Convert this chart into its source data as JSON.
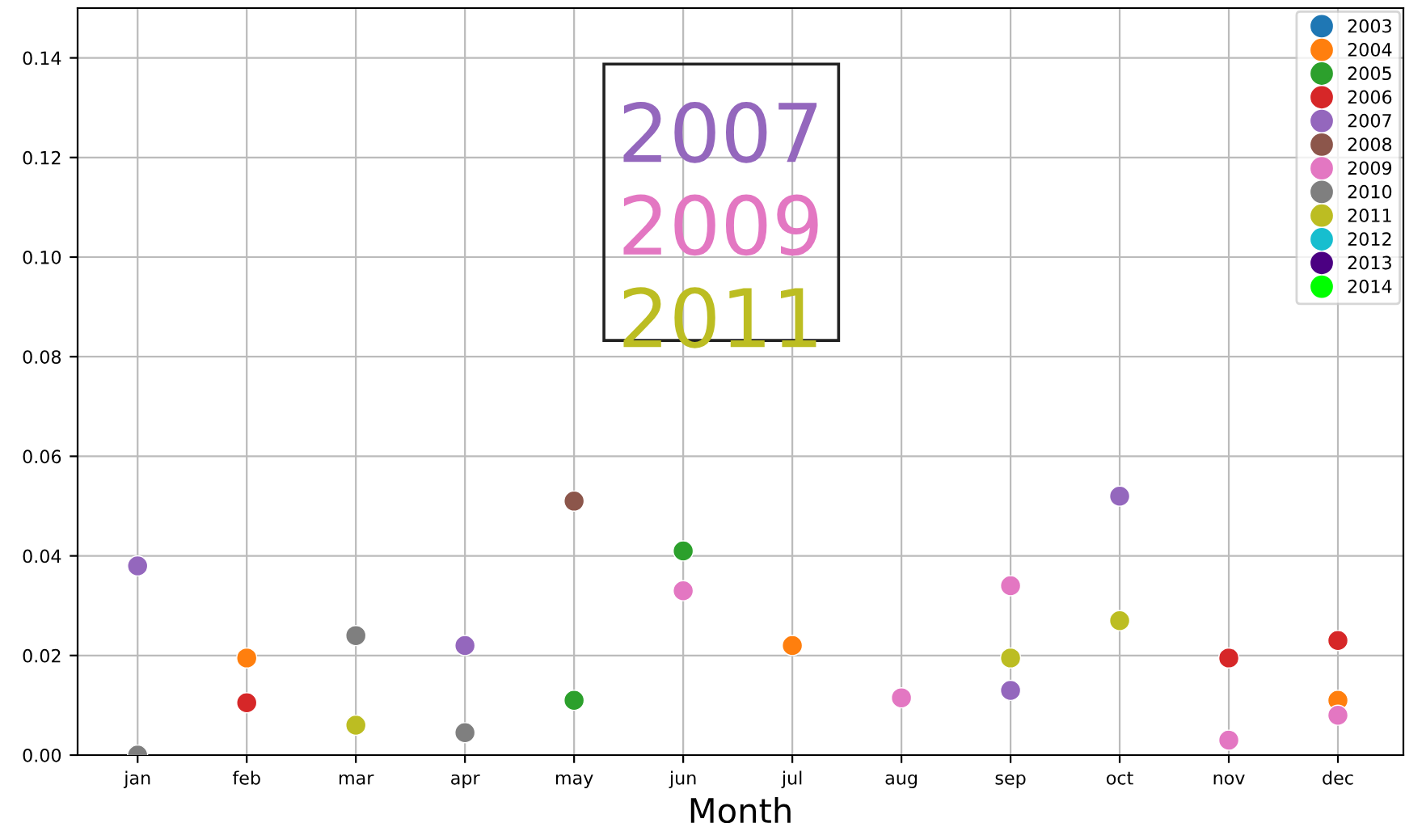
{
  "chart_data": {
    "type": "scatter",
    "xlabel": "Month",
    "categories": [
      "jan",
      "feb",
      "mar",
      "apr",
      "may",
      "jun",
      "jul",
      "aug",
      "sep",
      "oct",
      "nov",
      "dec"
    ],
    "series": [
      {
        "name": "2003",
        "color": "#1f77b4",
        "values": [
          null,
          null,
          null,
          null,
          null,
          null,
          null,
          null,
          null,
          null,
          null,
          null
        ]
      },
      {
        "name": "2004",
        "color": "#ff7f0e",
        "values": [
          null,
          0.0195,
          null,
          null,
          null,
          null,
          0.022,
          null,
          null,
          null,
          null,
          0.011
        ]
      },
      {
        "name": "2005",
        "color": "#2ca02c",
        "values": [
          null,
          null,
          null,
          null,
          0.011,
          0.041,
          null,
          null,
          null,
          null,
          null,
          null
        ]
      },
      {
        "name": "2006",
        "color": "#d62728",
        "values": [
          null,
          0.0105,
          null,
          null,
          null,
          null,
          null,
          null,
          null,
          null,
          0.0195,
          0.023
        ]
      },
      {
        "name": "2007",
        "color": "#9467bd",
        "values": [
          0.038,
          null,
          null,
          0.022,
          null,
          null,
          null,
          null,
          0.013,
          0.052,
          null,
          null
        ]
      },
      {
        "name": "2008",
        "color": "#8c564b",
        "values": [
          null,
          null,
          null,
          null,
          0.051,
          null,
          null,
          null,
          null,
          null,
          null,
          null
        ]
      },
      {
        "name": "2009",
        "color": "#e377c2",
        "values": [
          null,
          null,
          null,
          null,
          null,
          0.033,
          null,
          0.0115,
          0.034,
          null,
          0.003,
          0.008
        ]
      },
      {
        "name": "2010",
        "color": "#7f7f7f",
        "values": [
          0.0,
          null,
          0.024,
          0.0045,
          null,
          null,
          null,
          null,
          null,
          null,
          null,
          null
        ]
      },
      {
        "name": "2011",
        "color": "#bcbd22",
        "values": [
          null,
          null,
          0.006,
          null,
          null,
          null,
          null,
          null,
          0.0195,
          0.027,
          null,
          null
        ]
      },
      {
        "name": "2012",
        "color": "#17becf",
        "values": [
          null,
          null,
          null,
          null,
          null,
          null,
          null,
          null,
          null,
          null,
          null,
          null
        ]
      },
      {
        "name": "2013",
        "color": "#4b0082",
        "values": [
          null,
          null,
          null,
          null,
          null,
          null,
          null,
          null,
          null,
          null,
          null,
          null
        ]
      },
      {
        "name": "2014",
        "color": "#00ff00",
        "values": [
          null,
          null,
          null,
          null,
          null,
          null,
          null,
          null,
          null,
          null,
          null,
          null
        ]
      }
    ],
    "annotations": [
      "2007",
      "2009",
      "2011"
    ],
    "ylim": [
      0,
      0.15
    ],
    "yticks": [
      {
        "value": 0,
        "label": "0.00"
      },
      {
        "value": 0.02,
        "label": "0.02"
      },
      {
        "value": 0.04,
        "label": "0.04"
      },
      {
        "value": 0.06,
        "label": "0.06"
      },
      {
        "value": 0.08,
        "label": "0.08"
      },
      {
        "value": 0.1,
        "label": "0.10"
      },
      {
        "value": 0.12,
        "label": "0.12"
      },
      {
        "value": 0.14,
        "label": "0.14"
      }
    ],
    "grid": true,
    "legend": "top right",
    "marker": "circle"
  }
}
